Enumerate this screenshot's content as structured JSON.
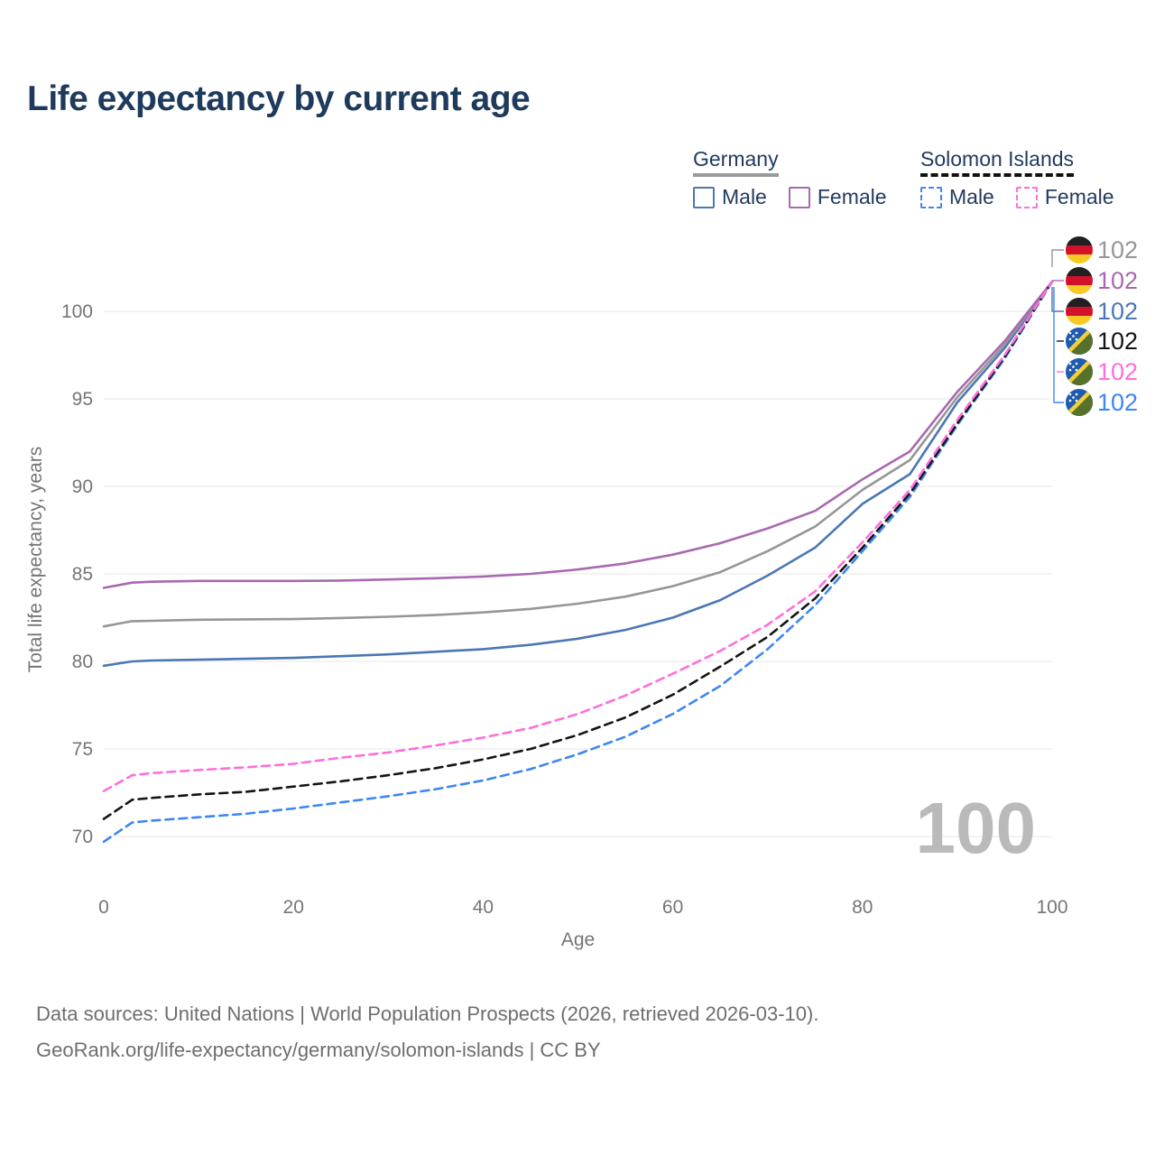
{
  "title": "Life expectancy by current age",
  "legend": {
    "groups": [
      {
        "label": "Germany",
        "underline_style": "solid",
        "underline_color": "#9a9a9a",
        "items": [
          {
            "label": "Male",
            "color": "#4a77b4",
            "dashed": false
          },
          {
            "label": "Female",
            "color": "#a869b0",
            "dashed": false
          }
        ]
      },
      {
        "label": "Solomon Islands",
        "underline_style": "dashed",
        "underline_color": "#111111",
        "items": [
          {
            "label": "Male",
            "color": "#3d86f5",
            "dashed": true
          },
          {
            "label": "Female",
            "color": "#ff6edb",
            "dashed": true
          }
        ]
      }
    ]
  },
  "chart_data": {
    "type": "line",
    "title": "Life expectancy by current age",
    "xlabel": "Age",
    "ylabel": "Total life expectancy, years",
    "x_ticks": [
      0,
      20,
      40,
      60,
      80,
      100
    ],
    "y_ticks": [
      70,
      75,
      80,
      85,
      90,
      95,
      100
    ],
    "xlim": [
      0,
      100
    ],
    "ylim": [
      68,
      103
    ],
    "grid": "horizontal",
    "legend_position": "top-right",
    "watermark": "100",
    "x": [
      0,
      3,
      5,
      10,
      15,
      20,
      25,
      30,
      35,
      40,
      45,
      50,
      55,
      60,
      65,
      70,
      75,
      80,
      85,
      90,
      95,
      100
    ],
    "series": [
      {
        "id": "germany-male",
        "name": "Germany Male",
        "color": "#4a77b4",
        "dashed": false,
        "values": [
          79.75,
          80.0,
          80.05,
          80.1,
          80.15,
          80.2,
          80.3,
          80.4,
          80.55,
          80.7,
          80.95,
          81.3,
          81.8,
          82.5,
          83.5,
          84.9,
          86.5,
          89.0,
          90.7,
          94.8,
          97.9,
          101.7
        ]
      },
      {
        "id": "germany-total",
        "name": "Germany (both sexes)",
        "color": "#969696",
        "dashed": false,
        "values": [
          82.0,
          82.3,
          82.32,
          82.38,
          82.4,
          82.42,
          82.48,
          82.55,
          82.65,
          82.8,
          83.0,
          83.3,
          83.7,
          84.3,
          85.1,
          86.3,
          87.7,
          89.8,
          91.5,
          95.1,
          98.1,
          101.7
        ]
      },
      {
        "id": "germany-female",
        "name": "Germany Female",
        "color": "#a869b0",
        "dashed": false,
        "values": [
          84.2,
          84.5,
          84.55,
          84.6,
          84.6,
          84.6,
          84.62,
          84.68,
          84.75,
          84.85,
          85.0,
          85.25,
          85.6,
          86.1,
          86.75,
          87.6,
          88.6,
          90.4,
          92.0,
          95.4,
          98.3,
          101.7
        ]
      },
      {
        "id": "si-male",
        "name": "Solomon Islands Male",
        "color": "#3d86f5",
        "dashed": true,
        "values": [
          69.7,
          70.8,
          70.9,
          71.1,
          71.3,
          71.6,
          71.95,
          72.3,
          72.7,
          73.2,
          73.85,
          74.7,
          75.7,
          77.0,
          78.6,
          80.7,
          83.2,
          86.3,
          89.4,
          93.5,
          97.3,
          101.7
        ]
      },
      {
        "id": "si-total",
        "name": "Solomon Islands (both sexes)",
        "color": "#141414",
        "dashed": true,
        "values": [
          71.0,
          72.1,
          72.2,
          72.4,
          72.55,
          72.85,
          73.15,
          73.5,
          73.9,
          74.4,
          75.0,
          75.8,
          76.8,
          78.1,
          79.7,
          81.4,
          83.6,
          86.5,
          89.6,
          93.6,
          97.4,
          101.7
        ]
      },
      {
        "id": "si-female",
        "name": "Solomon Islands Female",
        "color": "#ff6edb",
        "dashed": true,
        "values": [
          72.6,
          73.5,
          73.62,
          73.8,
          73.95,
          74.15,
          74.5,
          74.8,
          75.2,
          75.65,
          76.2,
          77.0,
          78.05,
          79.3,
          80.6,
          82.1,
          84.0,
          86.8,
          89.8,
          93.8,
          97.5,
          101.7
        ]
      }
    ],
    "end_labels": [
      {
        "flag": "germany",
        "series": "germany-total",
        "value": "102",
        "color": "#969696"
      },
      {
        "flag": "germany",
        "series": "germany-female",
        "value": "102",
        "color": "#a869b0"
      },
      {
        "flag": "germany",
        "series": "germany-male",
        "value": "102",
        "color": "#4a77b4"
      },
      {
        "flag": "solomon-islands",
        "series": "si-total",
        "value": "102",
        "color": "#141414"
      },
      {
        "flag": "solomon-islands",
        "series": "si-female",
        "value": "102",
        "color": "#ff6edb"
      },
      {
        "flag": "solomon-islands",
        "series": "si-male",
        "value": "102",
        "color": "#3d86f5"
      }
    ]
  },
  "footer": {
    "line1": "Data sources: United Nations | World Population Prospects (2026, retrieved 2026-03-10).",
    "line2": "GeoRank.org/life-expectancy/germany/solomon-islands | CC BY"
  }
}
